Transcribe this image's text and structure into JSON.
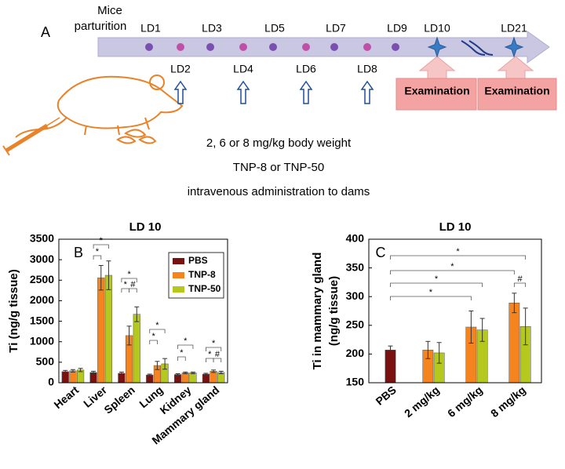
{
  "panel_a": {
    "letter": "A",
    "start_label": [
      "Mice",
      "parturition"
    ],
    "days_top": [
      "LD1",
      "LD3",
      "LD5",
      "LD7",
      "LD9"
    ],
    "days_bottom": [
      "LD2",
      "LD4",
      "LD6",
      "LD8"
    ],
    "exam_days": [
      "LD10",
      "LD21"
    ],
    "exam_boxes": [
      "Examination",
      "Examination"
    ],
    "dosing": [
      "2, 6 or 8 mg/kg body weight",
      "TNP-8 or TNP-50",
      "intravenous administration to dams"
    ]
  },
  "chart_data": [
    {
      "type": "bar",
      "letter": "B",
      "title": "LD 10",
      "ylabel": [
        "Ti (ng/g tissue)"
      ],
      "categories": [
        "Heart",
        "Liver",
        "Spleen",
        "Lung",
        "Kidney",
        "Mammary gland"
      ],
      "series": [
        {
          "name": "PBS",
          "color": "#7b1010",
          "values": [
            270,
            250,
            230,
            190,
            200,
            210
          ],
          "errors": [
            30,
            30,
            30,
            20,
            20,
            20
          ]
        },
        {
          "name": "TNP-8",
          "color": "#f5841f",
          "values": [
            290,
            2560,
            1150,
            420,
            240,
            280
          ],
          "errors": [
            30,
            300,
            230,
            100,
            20,
            30
          ]
        },
        {
          "name": "TNP-50",
          "color": "#b5c81e",
          "values": [
            310,
            2620,
            1670,
            460,
            240,
            250
          ],
          "errors": [
            40,
            350,
            180,
            130,
            20,
            30
          ]
        }
      ],
      "ylim": [
        0,
        3500
      ],
      "yticks": [
        0,
        500,
        1000,
        1500,
        2000,
        2500,
        3000,
        3500
      ],
      "legend": "upper right",
      "annotations": [
        "*",
        "*",
        "*",
        "*",
        "#",
        "*",
        "*",
        "*",
        "*",
        "*",
        "*",
        "#"
      ]
    },
    {
      "type": "bar",
      "letter": "C",
      "title": "LD 10",
      "ylabel": [
        "Ti in mammary gland",
        "(ng/g tissue)"
      ],
      "categories": [
        "PBS",
        "2 mg/kg",
        "6 mg/kg",
        "8 mg/kg"
      ],
      "series": [
        {
          "color": "#7b1010",
          "values": [
            207,
            null,
            null,
            null
          ],
          "errors": [
            7,
            null,
            null,
            null
          ]
        },
        {
          "color": "#f5841f",
          "values": [
            null,
            207,
            247,
            289
          ],
          "errors": [
            null,
            15,
            28,
            17
          ]
        },
        {
          "color": "#b5c81e",
          "values": [
            null,
            202,
            242,
            248
          ],
          "errors": [
            null,
            18,
            20,
            32
          ]
        }
      ],
      "ylim": [
        150,
        400
      ],
      "yticks": [
        150,
        200,
        250,
        300,
        350,
        400
      ],
      "annotations": [
        "*",
        "*",
        "*",
        "*",
        "#"
      ]
    }
  ]
}
